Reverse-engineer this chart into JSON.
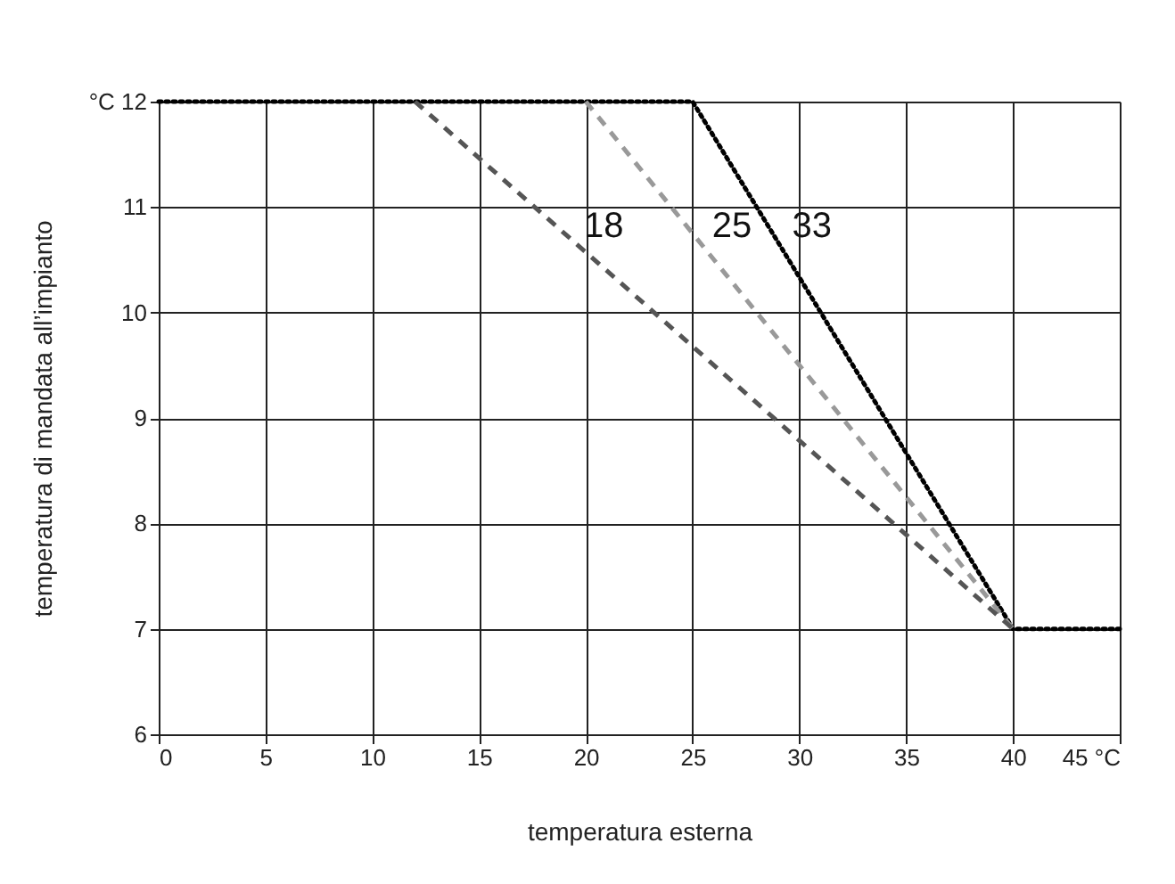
{
  "chart_data": {
    "type": "line",
    "xlabel": "temperatura esterna",
    "ylabel": "temperatura di mandata all’impianto",
    "xlim": [
      0,
      45
    ],
    "ylim": [
      6,
      12
    ],
    "xticks": [
      0,
      5,
      10,
      15,
      20,
      25,
      30,
      35,
      40,
      {
        "value": 45,
        "label": "45 °C"
      }
    ],
    "yticks": [
      6,
      7,
      8,
      9,
      10,
      11,
      {
        "value": 12,
        "label": "°C 12"
      }
    ],
    "grid": true,
    "marker": "none",
    "series": [
      {
        "name": "33",
        "color": "#000000",
        "line_style": "dotted",
        "x": [
          0,
          25,
          40,
          45
        ],
        "values": [
          12,
          12,
          7,
          7
        ]
      },
      {
        "name": "25",
        "color": "#999999",
        "line_style": "dashed",
        "x": [
          20,
          40
        ],
        "values": [
          12,
          7
        ]
      },
      {
        "name": "18",
        "color": "#555555",
        "line_style": "dashed",
        "x": [
          12,
          40
        ],
        "values": [
          12,
          7
        ]
      }
    ]
  }
}
